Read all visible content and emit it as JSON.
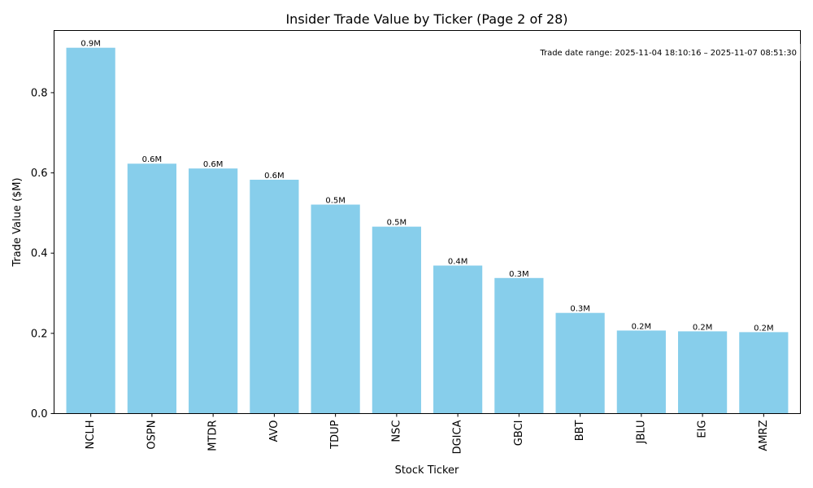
{
  "chart_data": {
    "type": "bar",
    "title": "Insider Trade Value by Ticker (Page 2 of 28)",
    "xlabel": "Stock Ticker",
    "ylabel": "Trade Value ($M)",
    "ylim": [
      0,
      0.955
    ],
    "yticks": [
      0.0,
      0.2,
      0.4,
      0.6,
      0.8
    ],
    "ytick_labels": [
      "0.0",
      "0.2",
      "0.4",
      "0.6",
      "0.8"
    ],
    "grid": false,
    "categories": [
      "NCLH",
      "OSPN",
      "MTDR",
      "AVO",
      "TDUP",
      "NSC",
      "DGICA",
      "GBCI",
      "BBT",
      "JBLU",
      "EIG",
      "AMRZ"
    ],
    "values": [
      0.912,
      0.623,
      0.611,
      0.583,
      0.521,
      0.466,
      0.369,
      0.338,
      0.251,
      0.207,
      0.205,
      0.203
    ],
    "data_labels": [
      "0.9M",
      "0.6M",
      "0.6M",
      "0.6M",
      "0.5M",
      "0.5M",
      "0.4M",
      "0.3M",
      "0.3M",
      "0.2M",
      "0.2M",
      "0.2M"
    ],
    "annotation": "Trade date range: 2025-11-04 18:10:16 – 2025-11-07 08:51:30",
    "bar_color": "#87CEEB"
  }
}
